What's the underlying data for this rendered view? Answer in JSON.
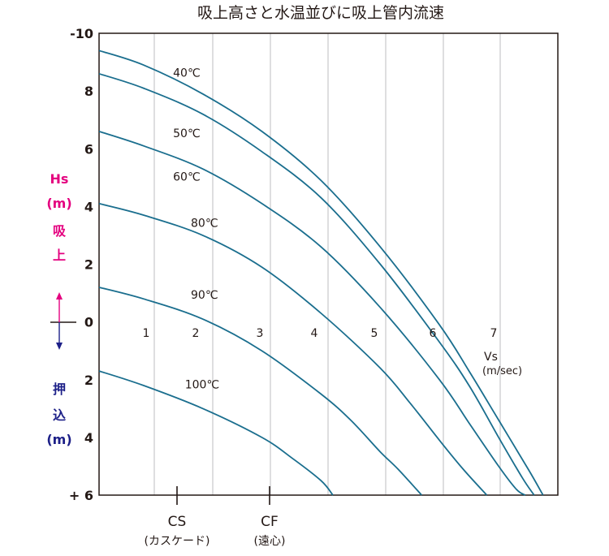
{
  "chart_data": {
    "type": "line",
    "title": "吸上高さと水温並びに吸上管内流速",
    "x_axis": {
      "label": "Vs",
      "unit": "(m/sec)",
      "tick_labels": [
        "1",
        "2",
        "3",
        "4",
        "5",
        "6",
        "7"
      ],
      "range": [
        0.25,
        8.0
      ]
    },
    "y_axis": {
      "range": [
        -10,
        6
      ],
      "tick_labels": [
        {
          "value": -10,
          "label": "-10"
        },
        {
          "value": -8,
          "label": "8"
        },
        {
          "value": -6,
          "label": "6"
        },
        {
          "value": -4,
          "label": "4"
        },
        {
          "value": -2,
          "label": "2"
        },
        {
          "value": 0,
          "label": "0"
        },
        {
          "value": 2,
          "label": "2"
        },
        {
          "value": 4,
          "label": "4"
        },
        {
          "value": 6,
          "label": "+ 6"
        }
      ],
      "upper_label": [
        "Hs",
        "(m)",
        "吸",
        "上"
      ],
      "lower_label": [
        "押",
        "込",
        "(m)"
      ],
      "upper_color": "#e4007f",
      "lower_color": "#1d2088"
    },
    "grid": true,
    "line_color": "#1a6e8e",
    "series": [
      {
        "name": "40℃",
        "x": [
          0.25,
          1.0,
          2.0,
          3.0,
          4.0,
          5.0,
          6.0,
          6.5,
          7.0,
          7.5,
          7.75
        ],
        "y": [
          -9.4,
          -8.9,
          -7.9,
          -6.6,
          -4.9,
          -2.6,
          0.1,
          1.7,
          3.4,
          5.1,
          6.0
        ]
      },
      {
        "name": "50℃",
        "x": [
          0.25,
          1.0,
          2.0,
          3.0,
          4.0,
          5.0,
          6.0,
          6.5,
          7.0,
          7.4,
          7.6
        ],
        "y": [
          -8.6,
          -8.1,
          -7.2,
          -5.9,
          -4.3,
          -2.0,
          0.7,
          2.2,
          4.0,
          5.4,
          6.0
        ]
      },
      {
        "name": "60℃",
        "x": [
          0.25,
          1.0,
          2.0,
          3.0,
          4.0,
          5.0,
          6.0,
          6.5,
          7.0,
          7.3,
          7.45
        ],
        "y": [
          -6.6,
          -6.1,
          -5.3,
          -4.1,
          -2.6,
          -0.5,
          2.0,
          3.5,
          5.0,
          5.8,
          6.0
        ]
      },
      {
        "name": "80℃",
        "x": [
          0.25,
          1.0,
          2.0,
          3.0,
          4.0,
          5.0,
          5.5,
          6.0,
          6.4,
          6.8
        ],
        "y": [
          -4.1,
          -3.7,
          -3.0,
          -1.9,
          -0.3,
          1.6,
          2.8,
          4.1,
          5.1,
          6.0
        ]
      },
      {
        "name": "90℃",
        "x": [
          0.25,
          1.0,
          2.0,
          3.0,
          4.0,
          4.5,
          5.0,
          5.3,
          5.7
        ],
        "y": [
          -1.2,
          -0.8,
          -0.1,
          1.0,
          2.5,
          3.4,
          4.5,
          5.1,
          6.0
        ]
      },
      {
        "name": "100℃",
        "x": [
          0.25,
          1.0,
          2.0,
          3.0,
          3.5,
          4.0,
          4.2
        ],
        "y": [
          1.7,
          2.2,
          3.0,
          4.0,
          4.7,
          5.5,
          6.0
        ]
      }
    ],
    "series_labels": [
      {
        "text": "40℃",
        "x": 1.5,
        "y": -8.5
      },
      {
        "text": "50℃",
        "x": 1.5,
        "y": -6.4
      },
      {
        "text": "60℃",
        "x": 1.5,
        "y": -4.9
      },
      {
        "text": "80℃",
        "x": 1.8,
        "y": -3.3
      },
      {
        "text": "90℃",
        "x": 1.8,
        "y": -0.8
      },
      {
        "text": "100℃",
        "x": 1.7,
        "y": 2.3
      }
    ],
    "markers": [
      {
        "label": "CS",
        "sublabel": "(カスケード)",
        "x": 1.8
      },
      {
        "label": "CF",
        "sublabel": "(遠心)",
        "x": 3.35
      }
    ]
  }
}
